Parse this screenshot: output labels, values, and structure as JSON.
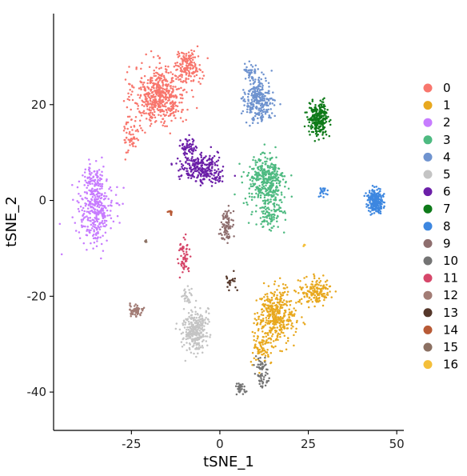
{
  "chart_data": {
    "type": "scatter",
    "xlabel": "tSNE_1",
    "ylabel": "tSNE_2",
    "xlim": [
      -47,
      52
    ],
    "ylim": [
      -48,
      39
    ],
    "xticks": [
      -25,
      0,
      25,
      50
    ],
    "yticks": [
      -40,
      -20,
      0,
      20
    ],
    "xtick_labels": [
      "-25",
      "0",
      "25",
      "50"
    ],
    "ytick_labels": [
      "-40",
      "-20",
      "0",
      "20"
    ],
    "grid": false,
    "legend_position": "right",
    "series": [
      {
        "name": "0",
        "color": "#F8766D",
        "clusters": [
          {
            "center": [
              -17,
              22
            ],
            "spread": [
              6.5,
              5.5
            ],
            "n": 520
          },
          {
            "center": [
              -9,
              28
            ],
            "spread": [
              3.5,
              3
            ],
            "n": 150
          },
          {
            "center": [
              -25,
              14
            ],
            "spread": [
              2,
              4
            ],
            "n": 60
          }
        ]
      },
      {
        "name": "1",
        "color": "#E8A81E",
        "clusters": [
          {
            "center": [
              16,
              -24
            ],
            "spread": [
              5,
              5
            ],
            "n": 380
          },
          {
            "center": [
              27,
              -19
            ],
            "spread": [
              4,
              2.5
            ],
            "n": 160
          },
          {
            "center": [
              12,
              -31
            ],
            "spread": [
              3,
              3
            ],
            "n": 80
          }
        ]
      },
      {
        "name": "2",
        "color": "#C77CFF",
        "clusters": [
          {
            "center": [
              -35,
              -2
            ],
            "spread": [
              4.5,
              6
            ],
            "n": 330
          },
          {
            "center": [
              -36,
              5
            ],
            "spread": [
              3,
              2.5
            ],
            "n": 60
          }
        ]
      },
      {
        "name": "3",
        "color": "#4EBA81",
        "clusters": [
          {
            "center": [
              13,
              4
            ],
            "spread": [
              5,
              5
            ],
            "n": 360
          },
          {
            "center": [
              14,
              -3
            ],
            "spread": [
              3.5,
              3
            ],
            "n": 100
          }
        ]
      },
      {
        "name": "4",
        "color": "#6F93CF",
        "clusters": [
          {
            "center": [
              11,
              21
            ],
            "spread": [
              3.5,
              4
            ],
            "n": 280
          },
          {
            "center": [
              9,
              27
            ],
            "spread": [
              2,
              1.5
            ],
            "n": 40
          }
        ]
      },
      {
        "name": "5",
        "color": "#C4C4C4",
        "clusters": [
          {
            "center": [
              -7,
              -27
            ],
            "spread": [
              3,
              4
            ],
            "n": 300
          },
          {
            "center": [
              -9,
              -20
            ],
            "spread": [
              1.5,
              1.5
            ],
            "n": 30
          }
        ]
      },
      {
        "name": "6",
        "color": "#6B1FA8",
        "clusters": [
          {
            "center": [
              -6,
              7
            ],
            "spread": [
              5,
              2.5
            ],
            "n": 200
          },
          {
            "center": [
              -9,
              11
            ],
            "spread": [
              2,
              2
            ],
            "n": 60
          },
          {
            "center": [
              -3,
              5
            ],
            "spread": [
              4,
              1.5
            ],
            "n": 60
          }
        ]
      },
      {
        "name": "7",
        "color": "#0E7A19",
        "clusters": [
          {
            "center": [
              28,
              17
            ],
            "spread": [
              2.5,
              3
            ],
            "n": 260
          }
        ]
      },
      {
        "name": "8",
        "color": "#3D87E0",
        "clusters": [
          {
            "center": [
              44,
              0
            ],
            "spread": [
              2,
              2
            ],
            "n": 250
          },
          {
            "center": [
              29,
              2
            ],
            "spread": [
              1,
              1.5
            ],
            "n": 20
          }
        ]
      },
      {
        "name": "9",
        "color": "#8E6E6E",
        "clusters": [
          {
            "center": [
              2,
              -5
            ],
            "spread": [
              1.5,
              3
            ],
            "n": 80
          }
        ]
      },
      {
        "name": "10",
        "color": "#747474",
        "clusters": [
          {
            "center": [
              12,
              -36
            ],
            "spread": [
              2,
              3
            ],
            "n": 60
          },
          {
            "center": [
              6,
              -39
            ],
            "spread": [
              1.5,
              1
            ],
            "n": 30
          }
        ]
      },
      {
        "name": "11",
        "color": "#D6476A",
        "clusters": [
          {
            "center": [
              -10,
              -12
            ],
            "spread": [
              1.5,
              3
            ],
            "n": 60
          }
        ]
      },
      {
        "name": "12",
        "color": "#A27C75",
        "clusters": [
          {
            "center": [
              -24,
              -23
            ],
            "spread": [
              2,
              1
            ],
            "n": 60
          }
        ]
      },
      {
        "name": "13",
        "color": "#55372A",
        "clusters": [
          {
            "center": [
              3,
              -17
            ],
            "spread": [
              1.5,
              1.5
            ],
            "n": 20
          }
        ]
      },
      {
        "name": "14",
        "color": "#B85A36",
        "clusters": [
          {
            "center": [
              -14,
              -2.5
            ],
            "spread": [
              0.6,
              0.6
            ],
            "n": 10
          }
        ]
      },
      {
        "name": "15",
        "color": "#8B7062",
        "clusters": [
          {
            "center": [
              -21,
              -8.5
            ],
            "spread": [
              0.4,
              0.5
            ],
            "n": 4
          }
        ]
      },
      {
        "name": "16",
        "color": "#F4BF3A",
        "clusters": [
          {
            "center": [
              24,
              -9.5
            ],
            "spread": [
              0.5,
              0.5
            ],
            "n": 4
          }
        ]
      }
    ]
  }
}
